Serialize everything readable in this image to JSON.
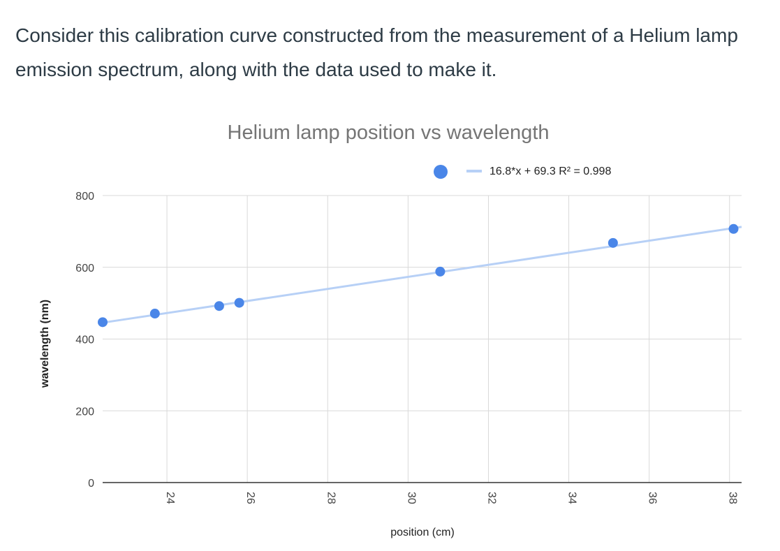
{
  "question": {
    "text": "Consider this calibration curve constructed from the measurement of a Helium lamp emission spectrum, along with the data used to make it."
  },
  "colors": {
    "point": "#4a86e8",
    "trendline": "#b7d0f6",
    "grid": "#d9d9d9",
    "axis": "#333333",
    "title": "#757575",
    "text": "#2d3b45"
  },
  "chart_data": {
    "type": "scatter",
    "title": "Helium lamp position vs wavelength",
    "xlabel": "position (cm)",
    "ylabel": "wavelength (nm)",
    "xlim": [
      22.4,
      38.3
    ],
    "ylim": [
      0,
      800
    ],
    "x_ticks": [
      "24",
      "26",
      "28",
      "30",
      "32",
      "34",
      "36",
      "38"
    ],
    "y_ticks": [
      "0",
      "200",
      "400",
      "600",
      "800"
    ],
    "grid": true,
    "legend_position": "top",
    "trendline": {
      "label": "16.8*x + 69.3 R² = 0.998",
      "slope": 16.8,
      "intercept": 69.3
    },
    "series": [
      {
        "x": [
          22.4,
          23.7,
          25.3,
          25.8,
          30.8,
          35.1,
          38.1
        ],
        "y": [
          447,
          471,
          492,
          501,
          588,
          668,
          707
        ]
      }
    ]
  }
}
